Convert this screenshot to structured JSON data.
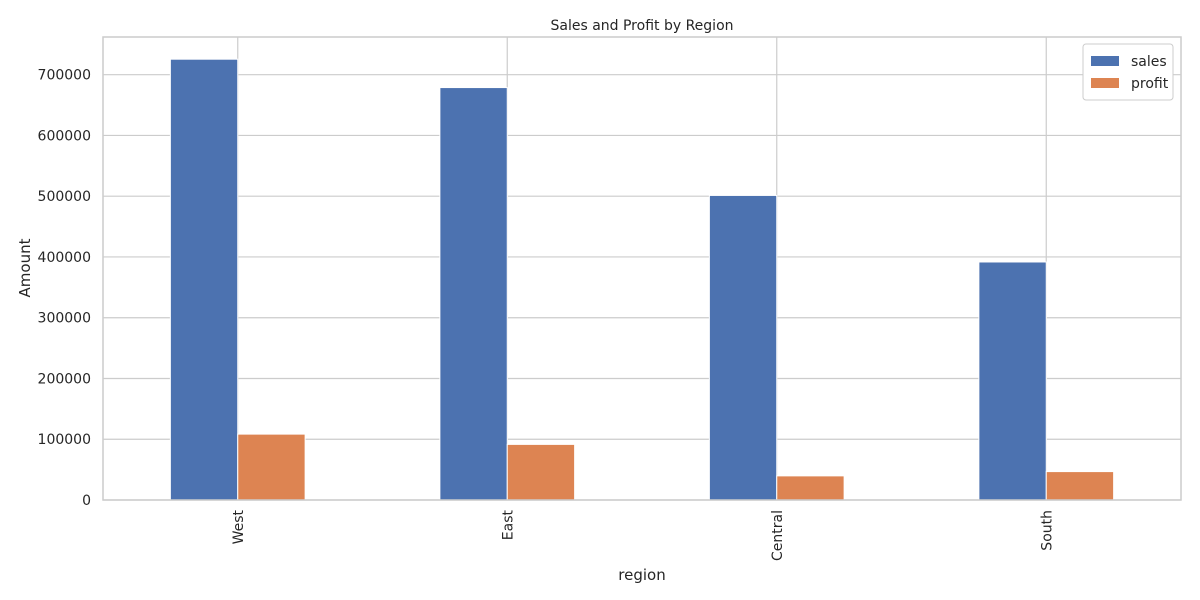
{
  "chart_data": {
    "type": "bar",
    "title": "Sales and Profit by Region",
    "xlabel": "region",
    "ylabel": "Amount",
    "categories": [
      "West",
      "East",
      "Central",
      "South"
    ],
    "series": [
      {
        "name": "sales",
        "color": "#4c72b0",
        "values": [
          725458,
          678781,
          501240,
          391722
        ]
      },
      {
        "name": "profit",
        "color": "#dd8452",
        "values": [
          108418,
          91523,
          39706,
          46749
        ]
      }
    ],
    "ylim": [
      0,
      762000
    ],
    "yticks": [
      0,
      100000,
      200000,
      300000,
      400000,
      500000,
      600000,
      700000
    ],
    "grid": true,
    "legend": "top-right"
  }
}
